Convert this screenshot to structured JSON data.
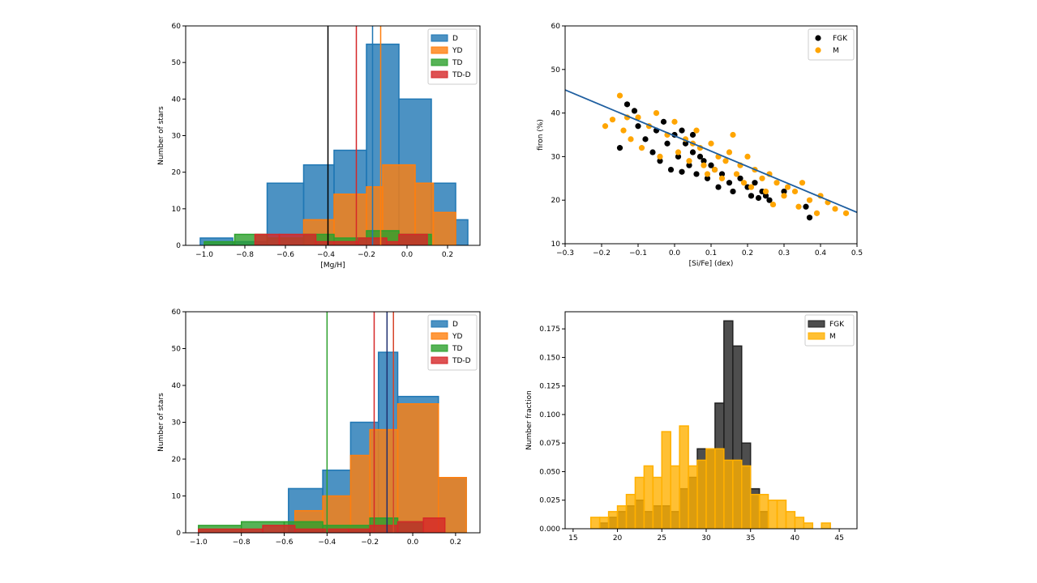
{
  "chart_data": [
    {
      "type": "histogram",
      "xlabel": "[Mg/H]",
      "ylabel": "Number of stars",
      "xlim": [
        -1.092,
        0.36
      ],
      "ylim": [
        0,
        60
      ],
      "xticks": [
        {
          "value": -1.0,
          "label": "−1.0"
        },
        {
          "value": -0.8,
          "label": "−0.8"
        },
        {
          "value": -0.6,
          "label": "−0.6"
        },
        {
          "value": -0.4,
          "label": "−0.4"
        },
        {
          "value": -0.2,
          "label": "−0.2"
        },
        {
          "value": 0.0,
          "label": "0.0"
        },
        0.2
      ],
      "yticks": [
        0,
        10,
        20,
        30,
        40,
        50,
        60
      ],
      "legend": "upper right",
      "series": [
        {
          "name": "D",
          "color": "#1f77b4",
          "bins": [
            -1.02,
            -0.86,
            -0.69,
            -0.51,
            -0.36,
            -0.2,
            -0.04,
            0.12,
            0.24,
            0.3
          ],
          "values": [
            2,
            1,
            17,
            22,
            26,
            55,
            40,
            17,
            7
          ]
        },
        {
          "name": "YD",
          "color": "#ff7f0e",
          "bins": [
            -0.51,
            -0.36,
            -0.2,
            -0.12,
            0.04,
            0.13,
            0.24
          ],
          "values": [
            7,
            14,
            16,
            22,
            17,
            9
          ]
        },
        {
          "name": "TD",
          "color": "#2ca02c",
          "bins": [
            -1.0,
            -0.85,
            -0.69,
            -0.51,
            -0.36,
            -0.2,
            -0.04,
            0.12
          ],
          "values": [
            1,
            3,
            2,
            3,
            2,
            4,
            3
          ]
        },
        {
          "name": "TD-D",
          "color": "#d62728",
          "bins": [
            -0.75,
            -0.63,
            -0.45,
            -0.36,
            -0.24,
            -0.1,
            -0.04,
            0.1
          ],
          "values": [
            3,
            3,
            1,
            1,
            2,
            1,
            3
          ]
        }
      ],
      "vlines": [
        {
          "value": -0.39,
          "color": "#000000"
        },
        {
          "value": -0.25,
          "color": "#d62728"
        },
        {
          "value": -0.17,
          "color": "#1f77b4"
        },
        {
          "value": -0.13,
          "color": "#ff7f0e"
        }
      ]
    },
    {
      "type": "scatter",
      "xlabel": "[Si/Fe] (dex)",
      "ylabel": "firon (%)",
      "xlim": [
        -0.3,
        0.5
      ],
      "ylim": [
        10,
        60
      ],
      "xticks": [
        {
          "value": -0.3,
          "label": "−0.3"
        },
        {
          "value": -0.2,
          "label": "−0.2"
        },
        {
          "value": -0.1,
          "label": "−0.1"
        },
        {
          "value": 0.0,
          "label": "0.0"
        },
        0.1,
        0.2,
        0.3,
        0.4,
        0.5
      ],
      "yticks": [
        10,
        20,
        30,
        40,
        50,
        60
      ],
      "legend": "upper right",
      "series": [
        {
          "name": "FGK",
          "color": "#000000",
          "x": [
            -0.13,
            -0.11,
            -0.1,
            -0.08,
            -0.06,
            -0.05,
            -0.04,
            -0.03,
            -0.02,
            -0.01,
            0.0,
            0.01,
            0.02,
            0.03,
            0.04,
            0.05,
            0.06,
            0.07,
            0.08,
            0.09,
            0.1,
            0.11,
            0.12,
            0.13,
            0.15,
            0.16,
            0.18,
            0.2,
            0.21,
            0.22,
            0.23,
            0.24,
            0.25,
            0.26,
            0.3,
            0.36,
            0.37,
            -0.15,
            0.02,
            0.05
          ],
          "values": [
            42,
            40.5,
            37,
            34,
            31,
            36,
            29,
            38,
            33,
            27,
            35,
            30,
            26.5,
            33,
            28,
            31,
            26,
            30,
            29,
            25,
            28,
            27,
            23,
            26,
            24,
            22,
            25,
            23,
            21,
            24,
            20.5,
            22,
            21,
            20,
            22,
            18.5,
            16,
            32,
            36,
            35
          ]
        },
        {
          "name": "M",
          "color": "#ffa500",
          "x": [
            -0.19,
            -0.17,
            -0.15,
            -0.14,
            -0.12,
            -0.1,
            -0.09,
            -0.07,
            -0.05,
            -0.04,
            -0.02,
            0.0,
            0.01,
            0.03,
            0.04,
            0.06,
            0.07,
            0.08,
            0.1,
            0.11,
            0.12,
            0.13,
            0.14,
            0.15,
            0.17,
            0.18,
            0.19,
            0.2,
            0.21,
            0.22,
            0.24,
            0.25,
            0.26,
            0.27,
            0.28,
            0.3,
            0.31,
            0.33,
            0.34,
            0.35,
            0.37,
            0.39,
            0.4,
            0.42,
            0.44,
            0.47,
            -0.13,
            0.05,
            0.09,
            0.16
          ],
          "values": [
            37,
            38.5,
            44,
            36,
            34,
            39,
            32,
            37,
            40,
            30,
            35,
            38,
            31,
            34,
            29,
            36,
            32,
            28,
            33,
            27,
            30,
            25,
            29,
            31,
            26,
            28,
            24,
            30,
            23,
            27,
            25,
            22,
            26,
            19,
            24,
            21,
            23,
            22,
            18.5,
            24,
            20,
            17,
            21,
            19.5,
            18,
            17,
            39,
            33,
            26,
            35
          ]
        },
        {
          "type": "line",
          "color": "#1f5fa0",
          "x": [
            -0.3,
            0.5
          ],
          "values": [
            45.3,
            17.2
          ]
        }
      ]
    },
    {
      "type": "histogram",
      "ylabel": "Number of stars",
      "xlim": [
        -1.06,
        0.314
      ],
      "ylim": [
        0,
        60
      ],
      "xticks": [
        {
          "value": -1.0,
          "label": "−1.0"
        },
        {
          "value": -0.8,
          "label": "−0.8"
        },
        {
          "value": -0.6,
          "label": "−0.6"
        },
        {
          "value": -0.4,
          "label": "−0.4"
        },
        {
          "value": -0.2,
          "label": "−0.2"
        },
        {
          "value": 0.0,
          "label": "0.0"
        },
        0.2
      ],
      "yticks": [
        0,
        10,
        20,
        30,
        40,
        50,
        60
      ],
      "legend": "upper right",
      "series": [
        {
          "name": "D",
          "color": "#1f77b4",
          "bins": [
            -0.58,
            -0.42,
            -0.29,
            -0.16,
            -0.07,
            0.12,
            0.25
          ],
          "values": [
            12,
            17,
            30,
            49,
            37,
            15
          ]
        },
        {
          "name": "YD",
          "color": "#ff7f0e",
          "bins": [
            -0.55,
            -0.42,
            -0.29,
            -0.2,
            -0.07,
            0.12,
            0.25
          ],
          "values": [
            6,
            10,
            21,
            28,
            35,
            15
          ]
        },
        {
          "name": "TD",
          "color": "#2ca02c",
          "bins": [
            -1.0,
            -0.8,
            -0.6,
            -0.42,
            -0.2,
            -0.07,
            0.05
          ],
          "values": [
            2,
            3,
            3,
            2,
            4,
            3
          ]
        },
        {
          "name": "TD-D",
          "color": "#d62728",
          "bins": [
            -1.0,
            -0.7,
            -0.55,
            -0.3,
            -0.2,
            -0.07,
            0.05,
            0.15
          ],
          "values": [
            1,
            2,
            1,
            1,
            2,
            3,
            4
          ]
        }
      ],
      "vlines": [
        {
          "value": -0.4,
          "color": "#2ca02c"
        },
        {
          "value": -0.18,
          "color": "#d62728"
        },
        {
          "value": -0.12,
          "color": "#1f2f6f"
        },
        {
          "value": -0.09,
          "color": "#d6452a"
        }
      ]
    },
    {
      "type": "histogram",
      "ylabel": "Number fraction",
      "xlim": [
        14.1,
        47.0
      ],
      "ylim": [
        0,
        0.19
      ],
      "xticks": [
        15,
        20,
        25,
        30,
        35,
        40,
        45
      ],
      "yticks": [
        {
          "value": 0,
          "label": "0.000"
        },
        {
          "value": 0.025,
          "label": "0.025"
        },
        {
          "value": 0.05,
          "label": "0.050"
        },
        {
          "value": 0.075,
          "label": "0.075"
        },
        {
          "value": 0.1,
          "label": "0.100"
        },
        {
          "value": 0.125,
          "label": "0.125"
        },
        {
          "value": 0.15,
          "label": "0.150"
        },
        {
          "value": 0.175,
          "label": "0.175"
        }
      ],
      "legend": "upper right",
      "series": [
        {
          "name": "FGK",
          "color": "#222222",
          "bins": [
            18,
            19,
            20,
            21,
            22,
            23,
            24,
            25,
            26,
            27,
            28,
            29,
            30,
            31,
            32,
            33,
            34,
            35,
            36,
            37
          ],
          "values": [
            0.005,
            0.01,
            0.015,
            0.02,
            0.025,
            0.015,
            0.02,
            0.02,
            0.015,
            0.035,
            0.045,
            0.07,
            0.07,
            0.11,
            0.182,
            0.16,
            0.075,
            0.035,
            0.015
          ]
        },
        {
          "name": "M",
          "color": "#ffb000",
          "bins": [
            17,
            18,
            19,
            20,
            21,
            22,
            23,
            24,
            25,
            26,
            27,
            28,
            29,
            30,
            31,
            32,
            33,
            34,
            35,
            36,
            37,
            38,
            39,
            40,
            41,
            42,
            43,
            44
          ],
          "values": [
            0.01,
            0.01,
            0.015,
            0.02,
            0.03,
            0.045,
            0.055,
            0.045,
            0.085,
            0.055,
            0.09,
            0.055,
            0.06,
            0.07,
            0.07,
            0.06,
            0.06,
            0.055,
            0.03,
            0.03,
            0.025,
            0.025,
            0.015,
            0.01,
            0.005,
            0,
            0.005
          ]
        }
      ]
    }
  ]
}
